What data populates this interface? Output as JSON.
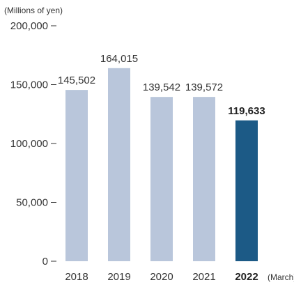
{
  "chart_data": {
    "type": "bar",
    "unit_label": "(Millions of yen)",
    "x_suffix": "(March)",
    "categories": [
      "2018",
      "2019",
      "2020",
      "2021",
      "2022"
    ],
    "values": [
      145502,
      164015,
      139542,
      139572,
      119633
    ],
    "value_labels": [
      "145,502",
      "164,015",
      "139,542",
      "139,572",
      "119,633"
    ],
    "highlight_index": 4,
    "ylim": [
      0,
      200000
    ],
    "y_ticks": [
      0,
      50000,
      100000,
      150000,
      200000
    ],
    "y_tick_labels": [
      "0",
      "50,000",
      "100,000",
      "150,000",
      "200,000"
    ],
    "grid": false,
    "colors": {
      "bar": "#b9c6db",
      "highlight": "#1c5a86",
      "axis": "#333333"
    }
  }
}
